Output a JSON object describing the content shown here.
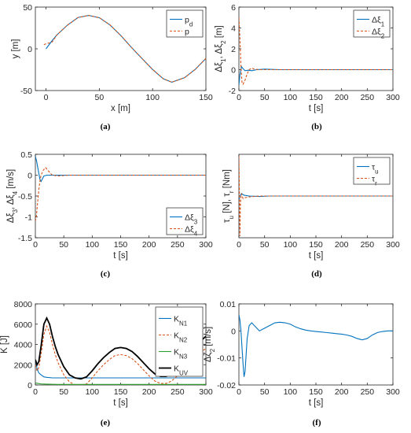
{
  "colors": {
    "blue": "#0072BD",
    "orange": "#D95319",
    "green": "#2CA02C",
    "black": "#000000",
    "axis": "#262626",
    "grid": "#262626"
  },
  "chart_data": [
    {
      "id": "a",
      "type": "line",
      "caption": "(a)",
      "xlabel": "x [m]",
      "ylabel": "y [m]",
      "xlim": [
        -10,
        150
      ],
      "ylim": [
        -50,
        50
      ],
      "xticks": [
        0,
        50,
        100,
        150
      ],
      "yticks": [
        -50,
        0,
        50
      ],
      "xtick_labels": [
        "0",
        "50",
        "100",
        "150"
      ],
      "ytick_labels": [
        "-50",
        "0",
        "50"
      ],
      "grid": false,
      "legend": {
        "position": "top-right",
        "entries": [
          "p_d",
          "p"
        ]
      },
      "series": [
        {
          "name": "p_d",
          "color": "blue",
          "style": "solid",
          "x": [
            0,
            5,
            10,
            20,
            30,
            40,
            50,
            60,
            70,
            80,
            90,
            100,
            110,
            118,
            130,
            140,
            150
          ],
          "y": [
            0,
            8.6,
            16.4,
            28.3,
            37.5,
            40.0,
            37.3,
            28.6,
            16.2,
            1.9,
            -11.6,
            -24.8,
            -35.9,
            -40.0,
            -34.6,
            -24.6,
            -11.5
          ]
        },
        {
          "name": "p",
          "color": "orange",
          "style": "dashed",
          "x": [
            -2,
            0,
            3,
            6,
            10,
            20,
            30,
            40,
            50,
            60,
            70,
            80,
            90,
            100,
            110,
            118,
            130,
            140,
            150
          ],
          "y": [
            5,
            6,
            7,
            8.5,
            16.4,
            28.3,
            37.5,
            40.0,
            37.3,
            28.6,
            16.2,
            1.9,
            -11.6,
            -24.8,
            -35.9,
            -40.0,
            -34.6,
            -24.6,
            -11.5
          ]
        }
      ]
    },
    {
      "id": "b",
      "type": "line",
      "caption": "(b)",
      "xlabel": "t [s]",
      "ylabel": "Δξ1, Δξ2 [m]",
      "xlim": [
        0,
        300
      ],
      "ylim": [
        -2,
        6
      ],
      "xticks": [
        0,
        50,
        100,
        150,
        200,
        250,
        300
      ],
      "yticks": [
        -2,
        0,
        2,
        4,
        6
      ],
      "xtick_labels": [
        "0",
        "50",
        "100",
        "150",
        "200",
        "250",
        "300"
      ],
      "ytick_labels": [
        "-2",
        "0",
        "2",
        "4",
        "6"
      ],
      "grid": false,
      "legend": {
        "position": "top-right",
        "entries": [
          "Δξ1",
          "Δξ2"
        ]
      },
      "series": [
        {
          "name": "Δξ1",
          "color": "blue",
          "style": "solid",
          "x": [
            0,
            2,
            5,
            8,
            12,
            18,
            25,
            35,
            50,
            80,
            120,
            300
          ],
          "y": [
            -1.5,
            -0.5,
            0.3,
            0.1,
            -0.1,
            -0.05,
            -0.1,
            0,
            0.05,
            0,
            0,
            0
          ]
        },
        {
          "name": "Δξ2",
          "color": "orange",
          "style": "dashed",
          "x": [
            0,
            2,
            4,
            6,
            8,
            12,
            16,
            20,
            25,
            30,
            40,
            60,
            100,
            300
          ],
          "y": [
            5.0,
            3.0,
            0.3,
            -1.2,
            -1.4,
            -1.0,
            -0.4,
            0.0,
            0.15,
            0.05,
            0,
            0,
            0,
            0
          ]
        }
      ]
    },
    {
      "id": "c",
      "type": "line",
      "caption": "(c)",
      "xlabel": "t [s]",
      "ylabel": "Δξ3, Δξ4 [m/s]",
      "xlim": [
        0,
        300
      ],
      "ylim": [
        -1.5,
        0.5
      ],
      "xticks": [
        0,
        50,
        100,
        150,
        200,
        250,
        300
      ],
      "yticks": [
        -1.5,
        -1,
        -0.5,
        0,
        0.5
      ],
      "xtick_labels": [
        "0",
        "50",
        "100",
        "150",
        "200",
        "250",
        "300"
      ],
      "ytick_labels": [
        "-1.5",
        "-1",
        "-0.5",
        "0",
        "0.5"
      ],
      "grid": false,
      "legend": {
        "position": "bottom-right",
        "entries": [
          "Δξ3",
          "Δξ4"
        ]
      },
      "series": [
        {
          "name": "Δξ3",
          "color": "blue",
          "style": "solid",
          "x": [
            0,
            2,
            4,
            6,
            8,
            10,
            12,
            15,
            20,
            30,
            50,
            300
          ],
          "y": [
            0.45,
            0.35,
            0.2,
            0.05,
            -0.1,
            -0.15,
            -0.1,
            -0.02,
            0,
            0,
            0,
            0
          ]
        },
        {
          "name": "Δξ4",
          "color": "orange",
          "style": "dashed",
          "x": [
            0,
            2,
            4,
            6,
            8,
            10,
            14,
            18,
            22,
            26,
            30,
            40,
            60,
            300
          ],
          "y": [
            -1.1,
            -0.95,
            -0.65,
            -0.35,
            -0.15,
            0.0,
            0.12,
            0.18,
            0.12,
            0.05,
            0.0,
            -0.02,
            0,
            0
          ]
        }
      ]
    },
    {
      "id": "d",
      "type": "line",
      "caption": "(d)",
      "xlabel": "t [s]",
      "ylabel": "τu [N], τr [Nm]",
      "xlim": [
        0,
        300
      ],
      "ylim": [
        -5,
        5
      ],
      "xticks": [
        0,
        50,
        100,
        150,
        200,
        250,
        300
      ],
      "yticks": [],
      "xtick_labels": [
        "0",
        "50",
        "100",
        "150",
        "200",
        "250",
        "300"
      ],
      "ytick_labels": [],
      "grid": false,
      "legend": {
        "position": "top-right",
        "entries": [
          "τu",
          "τr"
        ]
      },
      "series": [
        {
          "name": "τu",
          "color": "blue",
          "style": "solid",
          "x": [
            0,
            2,
            5,
            10,
            20,
            40,
            60,
            100,
            300
          ],
          "y": [
            -0.5,
            0,
            0.3,
            0.1,
            0,
            -0.05,
            0,
            0,
            0
          ]
        },
        {
          "name": "τr",
          "color": "orange",
          "style": "dashed",
          "x": [
            0,
            1,
            2,
            3,
            5,
            8,
            12,
            20,
            40,
            300
          ],
          "y": [
            4.8,
            0.5,
            -4.8,
            -0.8,
            0.3,
            -0.3,
            -0.2,
            -0.1,
            0,
            0
          ]
        }
      ]
    },
    {
      "id": "e",
      "type": "line",
      "caption": "(e)",
      "xlabel": "t [s]",
      "ylabel": "K [J]",
      "xlim": [
        0,
        300
      ],
      "ylim": [
        0,
        8000
      ],
      "xticks": [
        0,
        50,
        100,
        150,
        200,
        250,
        300
      ],
      "yticks": [
        0,
        2000,
        4000,
        6000,
        8000
      ],
      "xtick_labels": [
        "0",
        "50",
        "100",
        "150",
        "200",
        "250",
        "300"
      ],
      "ytick_labels": [
        "0",
        "2000",
        "4000",
        "6000",
        "8000"
      ],
      "grid": false,
      "legend": {
        "position": "top-right",
        "entries": [
          "K_N1",
          "K_N2",
          "K_N3",
          "K_UV"
        ]
      },
      "series": [
        {
          "name": "K_N1",
          "color": "blue",
          "style": "solid",
          "x": [
            0,
            3,
            6,
            10,
            15,
            20,
            30,
            40,
            60,
            100,
            150,
            200,
            250,
            300
          ],
          "y": [
            2500,
            1600,
            1200,
            1000,
            800,
            750,
            700,
            700,
            700,
            700,
            700,
            700,
            700,
            700
          ]
        },
        {
          "name": "K_N2",
          "color": "orange",
          "style": "dashed",
          "x": [
            0,
            3,
            6,
            10,
            15,
            20,
            25,
            30,
            35,
            40,
            50,
            60,
            70,
            80,
            90,
            100,
            110,
            120,
            130,
            140,
            150,
            160,
            170,
            180,
            190,
            200,
            210,
            220,
            230,
            240,
            250,
            260,
            270,
            280,
            290,
            300
          ],
          "y": [
            2000,
            1400,
            1700,
            3000,
            5000,
            5800,
            5200,
            4000,
            3000,
            2200,
            1000,
            300,
            0,
            0,
            100,
            700,
            1400,
            2000,
            2500,
            2900,
            3000,
            2900,
            2600,
            2100,
            1500,
            900,
            400,
            150,
            150,
            400,
            900,
            1500,
            2100,
            2700,
            3200,
            3600
          ]
        },
        {
          "name": "K_N3",
          "color": "green",
          "style": "solid",
          "x": [
            0,
            5,
            10,
            20,
            40,
            100,
            200,
            300
          ],
          "y": [
            200,
            150,
            100,
            80,
            50,
            50,
            50,
            50
          ]
        },
        {
          "name": "K_UV",
          "color": "black",
          "style": "solid",
          "x": [
            0,
            3,
            6,
            10,
            15,
            20,
            25,
            30,
            35,
            40,
            50,
            60,
            70,
            80,
            90,
            100,
            110,
            120,
            130,
            140,
            150,
            160,
            170,
            180,
            190,
            200,
            210,
            220,
            230,
            240,
            250,
            260,
            270,
            280,
            290,
            300
          ],
          "y": [
            2500,
            2000,
            2300,
            3800,
            6000,
            6600,
            6000,
            4800,
            3800,
            3000,
            1800,
            1000,
            700,
            600,
            800,
            1400,
            2100,
            2700,
            3200,
            3600,
            3700,
            3600,
            3300,
            2800,
            2200,
            1600,
            1100,
            850,
            850,
            1100,
            1600,
            2200,
            2900,
            3600,
            4300,
            4800
          ]
        }
      ]
    },
    {
      "id": "f",
      "type": "line",
      "caption": "(f)",
      "xlabel": "t [s]",
      "ylabel": "Δζ2 [m/s]",
      "xlim": [
        0,
        300
      ],
      "ylim": [
        -0.02,
        0.01
      ],
      "xticks": [
        0,
        50,
        100,
        150,
        200,
        250,
        300
      ],
      "yticks": [
        -0.02,
        -0.01,
        0,
        0.01
      ],
      "xtick_labels": [
        "0",
        "50",
        "100",
        "150",
        "200",
        "250",
        "300"
      ],
      "ytick_labels": [
        "-0.02",
        "-0.01",
        "0",
        "0.01"
      ],
      "grid": false,
      "legend": null,
      "series": [
        {
          "name": "",
          "color": "blue",
          "style": "solid",
          "x": [
            0,
            2,
            4,
            6,
            8,
            10,
            12,
            14,
            16,
            20,
            25,
            30,
            40,
            50,
            60,
            70,
            80,
            90,
            100,
            110,
            120,
            130,
            140,
            150,
            160,
            170,
            180,
            190,
            200,
            210,
            220,
            230,
            240,
            250,
            260,
            270,
            280,
            290,
            300
          ],
          "y": [
            0.006,
            0.004,
            0.0,
            -0.006,
            -0.012,
            -0.017,
            -0.015,
            -0.009,
            -0.003,
            0.002,
            0.003,
            0.002,
            0.0,
            0.001,
            0.002,
            0.003,
            0.0032,
            0.003,
            0.0025,
            0.0015,
            0.0008,
            0.0003,
            0.0,
            -0.0002,
            -0.0004,
            -0.0006,
            -0.0008,
            -0.001,
            -0.0012,
            -0.0015,
            -0.002,
            -0.0028,
            -0.0033,
            -0.0028,
            -0.0015,
            -0.0006,
            -0.0002,
            0.0,
            0.0
          ]
        }
      ]
    }
  ]
}
